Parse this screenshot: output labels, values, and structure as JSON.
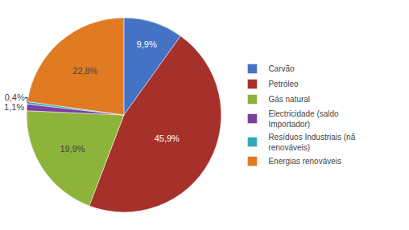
{
  "chart_data": {
    "type": "pie",
    "categories": [
      "Carvão",
      "Petróleo",
      "Gás natural",
      "Electricidade (saldo\nImportador)",
      "Resíduos Industriais (nã\nrenováveis)",
      "Energias renováveis"
    ],
    "values": [
      9.9,
      45.9,
      19.9,
      1.1,
      0.4,
      22.8
    ],
    "value_labels": [
      "9,9%",
      "45,9%",
      "19,9%",
      "1,1%",
      "0,4%",
      "22,8%"
    ],
    "colors": [
      "#4472C4",
      "#A5312A",
      "#8DB33A",
      "#7B3FA0",
      "#31A9B8",
      "#E07B23"
    ],
    "data_labels": true,
    "legend": "right"
  }
}
